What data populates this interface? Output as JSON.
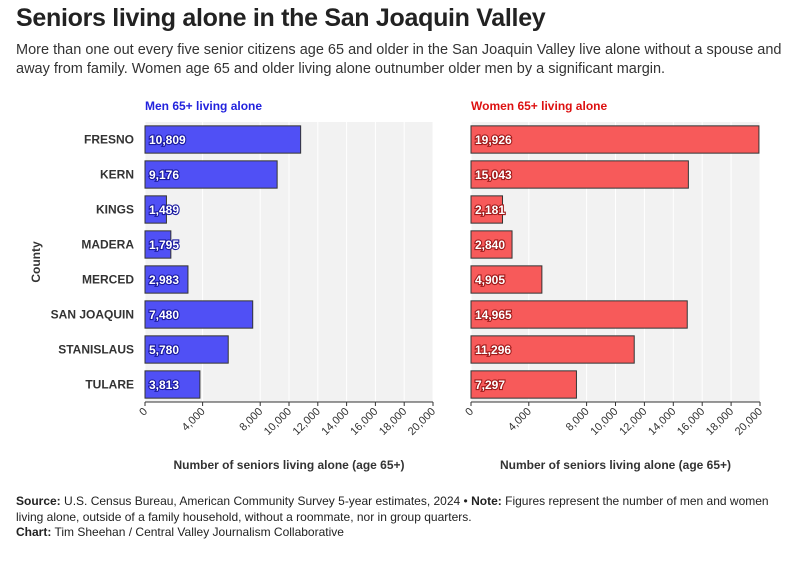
{
  "title": "Seniors living alone in the San Joaquin Valley",
  "subtitle": "More than one out every five senior citizens age 65 and older in the San Joaquin Valley live alone without a spouse and away from family. Women age 65 and older living alone outnumber older men by a significant margin.",
  "footer": {
    "source_label": "Source:",
    "source_text": "U.S. Census Bureau, American Community Survey 5-year estimates, 2024 •",
    "note_label": "Note:",
    "note_text": "Figures represent the number of men and women living alone, outside of a family household, without a roommate, nor in group quarters.",
    "chart_label": "Chart:",
    "chart_text": "Tim Sheehan / Central Valley Journalism Collaborative"
  },
  "colors": {
    "men_fill": "#5050f5",
    "women_fill": "#f75a5a",
    "men_title": "#2222dd",
    "women_title": "#dd1111",
    "plot_bg": "#f2f2f2",
    "bar_stroke": "#333333"
  },
  "chart_data": {
    "type": "bar",
    "orientation": "horizontal",
    "y_axis_label": "County",
    "categories": [
      "FRESNO",
      "KERN",
      "KINGS",
      "MADERA",
      "MERCED",
      "SAN JOAQUIN",
      "STANISLAUS",
      "TULARE"
    ],
    "panels": [
      {
        "title": "Men 65+ living alone",
        "xlabel": "Number of seniors living alone (age 65+)",
        "xlim": [
          0,
          20000
        ],
        "ticks": [
          0,
          4000,
          8000,
          10000,
          12000,
          14000,
          16000,
          18000,
          20000
        ],
        "tick_labels": [
          "0",
          "4,000",
          "8,000",
          "10,000",
          "12,000",
          "14,000",
          "16,000",
          "18,000",
          "20,000"
        ],
        "values": [
          10809,
          9176,
          1489,
          1795,
          2983,
          7480,
          5780,
          3813
        ],
        "value_labels": [
          "10,809",
          "9,176",
          "1,489",
          "1,795",
          "2,983",
          "7,480",
          "5,780",
          "3,813"
        ]
      },
      {
        "title": "Women 65+ living alone",
        "xlabel": "Number of seniors living alone (age 65+)",
        "xlim": [
          0,
          20000
        ],
        "ticks": [
          0,
          4000,
          8000,
          10000,
          12000,
          14000,
          16000,
          18000,
          20000
        ],
        "tick_labels": [
          "0",
          "4,000",
          "8,000",
          "10,000",
          "12,000",
          "14,000",
          "16,000",
          "18,000",
          "20,000"
        ],
        "values": [
          19926,
          15043,
          2181,
          2840,
          4905,
          14965,
          11296,
          7297
        ],
        "value_labels": [
          "19,926",
          "15,043",
          "2,181",
          "2,840",
          "4,905",
          "14,965",
          "11,296",
          "7,297"
        ]
      }
    ]
  }
}
